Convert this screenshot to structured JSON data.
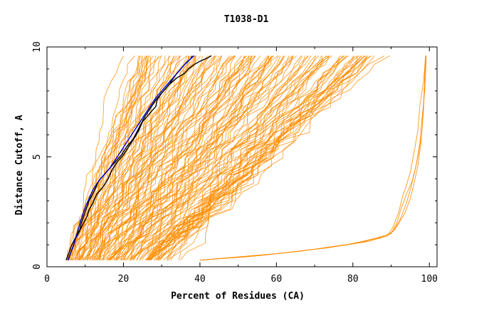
{
  "chart_data": {
    "type": "line",
    "title": "T1038-D1",
    "xlabel": "Percent of Residues (CA)",
    "ylabel": "Distance Cutoff, A",
    "xlim": [
      0,
      102
    ],
    "ylim": [
      0,
      10
    ],
    "x_ticks": [
      "0",
      "20",
      "40",
      "60",
      "80",
      "100"
    ],
    "y_ticks": [
      "0",
      "5",
      "10"
    ],
    "grid": false,
    "legend": "none",
    "colors": {
      "models": "#ff8c00",
      "highlight_black": "#000000",
      "highlight_blue": "#0000cc"
    },
    "model_family": {
      "description_free": true,
      "count": 140,
      "start_x_range": [
        5.0,
        40.0
      ],
      "end_x_range": [
        22.0,
        88.0
      ],
      "y_start": 0.3,
      "y_end": 9.6
    },
    "outlier_curves": [
      {
        "x": [
          40.0,
          52.0,
          66.0,
          78.0,
          84.0,
          89.0,
          90.5,
          92.0,
          93.0,
          94.0,
          95.0,
          96.0,
          97.0,
          97.5,
          98.5,
          99.0
        ],
        "y": [
          0.3,
          0.45,
          0.7,
          1.0,
          1.2,
          1.4,
          1.8,
          2.5,
          3.2,
          3.7,
          4.3,
          5.2,
          6.2,
          7.3,
          8.5,
          9.6
        ]
      },
      {
        "x": [
          40.0,
          55.0,
          68.0,
          80.0,
          86.0,
          90.0,
          91.5,
          92.5,
          94.0,
          95.5,
          96.5,
          97.5,
          98.0,
          98.8,
          99.2
        ],
        "y": [
          0.3,
          0.5,
          0.75,
          1.05,
          1.3,
          1.5,
          2.0,
          2.6,
          3.3,
          3.9,
          4.6,
          5.6,
          6.6,
          8.0,
          9.6
        ]
      },
      {
        "x": [
          40.0,
          58.0,
          70.0,
          82.0,
          87.5,
          90.5,
          92.5,
          94.0,
          95.0,
          96.0,
          97.0,
          98.0,
          98.5,
          99.0
        ],
        "y": [
          0.3,
          0.55,
          0.8,
          1.1,
          1.35,
          1.6,
          2.2,
          2.9,
          3.5,
          4.2,
          5.0,
          6.0,
          7.5,
          9.6
        ]
      },
      {
        "x": [
          40.0,
          60.0,
          73.0,
          84.0,
          89.0,
          91.0,
          93.5,
          95.0,
          96.0,
          97.0,
          97.8,
          98.5,
          99.0
        ],
        "y": [
          0.3,
          0.6,
          0.85,
          1.15,
          1.4,
          1.7,
          2.4,
          3.1,
          3.8,
          4.6,
          5.6,
          7.2,
          9.6
        ]
      }
    ],
    "highlight_series": [
      {
        "color": "#000000",
        "x": [
          5.0,
          6.5,
          8.0,
          9.0,
          10.5,
          11.0,
          12.0,
          13.0,
          14.5,
          16.0,
          17.0,
          18.5,
          20.0,
          21.5,
          23.0,
          24.0,
          25.0,
          26.5,
          27.5,
          28.5,
          28.8,
          30.0,
          32.0,
          34.0,
          36.0,
          37.0,
          38.5,
          40.0,
          42.0,
          43.0
        ],
        "y": [
          0.3,
          1.0,
          1.5,
          1.8,
          2.3,
          2.6,
          2.9,
          3.3,
          3.6,
          4.0,
          4.4,
          4.8,
          5.1,
          5.5,
          5.9,
          6.2,
          6.6,
          6.9,
          7.1,
          7.3,
          7.6,
          7.9,
          8.3,
          8.6,
          8.8,
          9.0,
          9.2,
          9.35,
          9.5,
          9.6
        ]
      },
      {
        "color": "#000000",
        "x": [
          5.5,
          7.0,
          7.5,
          8.5,
          9.0,
          10.0,
          11.0,
          12.5,
          13.5,
          15.0,
          16.5,
          18.0,
          19.5,
          21.0,
          22.5,
          24.0,
          25.5,
          27.0,
          28.5,
          30.5,
          32.0,
          33.5,
          34.5,
          35.5,
          36.5,
          37.5,
          38.0
        ],
        "y": [
          0.3,
          1.0,
          1.3,
          1.6,
          2.0,
          2.5,
          3.0,
          3.5,
          3.9,
          4.2,
          4.5,
          4.8,
          5.1,
          5.5,
          5.8,
          6.3,
          6.8,
          7.2,
          7.6,
          8.0,
          8.3,
          8.7,
          8.9,
          9.1,
          9.3,
          9.45,
          9.6
        ]
      },
      {
        "color": "#0000cc",
        "x": [
          5.5,
          7.0,
          8.0,
          9.0,
          10.0,
          11.0,
          12.0,
          13.5,
          15.0,
          16.5,
          18.0,
          19.5,
          21.0,
          22.5,
          24.0,
          25.5,
          27.0,
          28.5,
          30.0,
          31.5,
          33.0,
          34.5,
          36.0,
          37.5,
          38.5
        ],
        "y": [
          0.3,
          1.0,
          1.6,
          2.2,
          2.7,
          3.1,
          3.5,
          3.9,
          4.2,
          4.5,
          4.9,
          5.3,
          5.7,
          6.1,
          6.5,
          6.9,
          7.3,
          7.7,
          8.0,
          8.3,
          8.6,
          8.9,
          9.2,
          9.45,
          9.6
        ]
      }
    ]
  }
}
